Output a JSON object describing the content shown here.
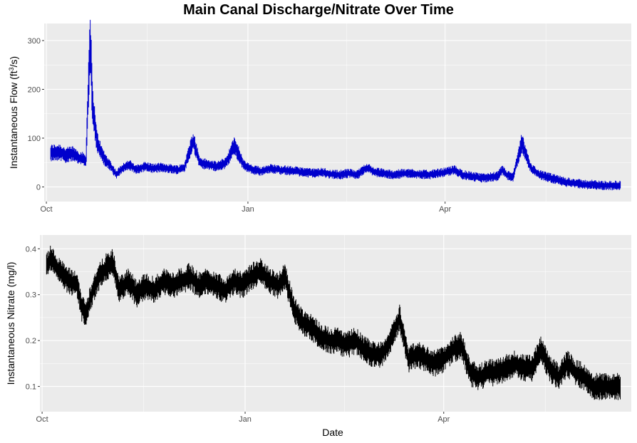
{
  "title": "Main Canal Discharge/Nitrate Over Time",
  "colors": {
    "panel_bg": "#ebebeb",
    "grid": "#ffffff",
    "flow_line": "#0000cc",
    "nitrate_line": "#000000"
  },
  "chart_data": [
    {
      "type": "line",
      "ylabel": "Instantaneous Flow (ft³/s)",
      "ylabel_main": "Instantaneous Flow (ft",
      "ylabel_sup": "3",
      "ylabel_end": "/s)",
      "xlabel": "",
      "x_ticks": [
        "Oct",
        "Jan",
        "Apr"
      ],
      "x_range": [
        "2016-09-30",
        "2017-06-25"
      ],
      "y_ticks": [
        0,
        100,
        200,
        300
      ],
      "ylim": [
        -30,
        335
      ],
      "color": "#0000cc",
      "series": [
        {
          "x": [
            "2016-10-03",
            "2016-10-07",
            "2016-10-10",
            "2016-10-13",
            "2016-10-16",
            "2016-10-19",
            "2016-10-21",
            "2016-10-22",
            "2016-10-24",
            "2016-10-26",
            "2016-10-28",
            "2016-10-30",
            "2016-11-02",
            "2016-11-05",
            "2016-11-08",
            "2016-11-11",
            "2016-11-15",
            "2016-11-19",
            "2016-11-22",
            "2016-11-26",
            "2016-11-30",
            "2016-12-03",
            "2016-12-07",
            "2016-12-10",
            "2016-12-14",
            "2016-12-18",
            "2016-12-22",
            "2016-12-26",
            "2016-12-30",
            "2017-01-03",
            "2017-01-07",
            "2017-01-11",
            "2017-01-15",
            "2017-01-19",
            "2017-01-23",
            "2017-01-27",
            "2017-01-31",
            "2017-02-04",
            "2017-02-08",
            "2017-02-12",
            "2017-02-16",
            "2017-02-20",
            "2017-02-24",
            "2017-02-28",
            "2017-03-04",
            "2017-03-08",
            "2017-03-12",
            "2017-03-16",
            "2017-03-20",
            "2017-03-24",
            "2017-03-28",
            "2017-04-01",
            "2017-04-05",
            "2017-04-09",
            "2017-04-13",
            "2017-04-17",
            "2017-04-21",
            "2017-04-25",
            "2017-04-27",
            "2017-04-29",
            "2017-05-02",
            "2017-05-06",
            "2017-05-10",
            "2017-05-14",
            "2017-05-18",
            "2017-05-22",
            "2017-05-26",
            "2017-05-30",
            "2017-06-03",
            "2017-06-07",
            "2017-06-11",
            "2017-06-15",
            "2017-06-20"
          ],
          "y": [
            70,
            72,
            65,
            68,
            60,
            55,
            310,
            175,
            95,
            70,
            55,
            45,
            25,
            40,
            45,
            35,
            42,
            38,
            40,
            38,
            35,
            40,
            95,
            50,
            45,
            42,
            50,
            85,
            45,
            35,
            32,
            38,
            35,
            34,
            32,
            30,
            28,
            30,
            26,
            25,
            28,
            25,
            40,
            30,
            28,
            25,
            27,
            28,
            26,
            25,
            27,
            30,
            35,
            25,
            22,
            18,
            20,
            22,
            35,
            25,
            20,
            90,
            40,
            25,
            20,
            15,
            10,
            8,
            5,
            5,
            3,
            3,
            3
          ]
        }
      ]
    },
    {
      "type": "line",
      "ylabel": "Instantaneous Nitrate (mg/l)",
      "xlabel": "Date",
      "x_ticks": [
        "Oct",
        "Jan",
        "Apr"
      ],
      "x_range": [
        "2016-09-30",
        "2017-06-25"
      ],
      "y_ticks": [
        "0.1",
        "0.2",
        "0.3",
        "0.4"
      ],
      "ylim": [
        0.045,
        0.43
      ],
      "color": "#000000",
      "series": [
        {
          "x": [
            "2016-10-03",
            "2016-10-05",
            "2016-10-09",
            "2016-10-13",
            "2016-10-17",
            "2016-10-19",
            "2016-10-21",
            "2016-10-24",
            "2016-10-27",
            "2016-10-30",
            "2016-11-02",
            "2016-11-05",
            "2016-11-09",
            "2016-11-13",
            "2016-11-17",
            "2016-11-21",
            "2016-11-25",
            "2016-11-29",
            "2016-12-03",
            "2016-12-07",
            "2016-12-11",
            "2016-12-15",
            "2016-12-19",
            "2016-12-23",
            "2016-12-27",
            "2016-12-31",
            "2017-01-04",
            "2017-01-08",
            "2017-01-12",
            "2017-01-16",
            "2017-01-19",
            "2017-01-23",
            "2017-01-27",
            "2017-01-31",
            "2017-02-04",
            "2017-02-08",
            "2017-02-12",
            "2017-02-16",
            "2017-02-20",
            "2017-02-24",
            "2017-02-28",
            "2017-03-04",
            "2017-03-08",
            "2017-03-12",
            "2017-03-16",
            "2017-03-20",
            "2017-03-24",
            "2017-03-28",
            "2017-04-01",
            "2017-04-05",
            "2017-04-09",
            "2017-04-13",
            "2017-04-17",
            "2017-04-21",
            "2017-04-25",
            "2017-04-29",
            "2017-05-03",
            "2017-05-07",
            "2017-05-11",
            "2017-05-15",
            "2017-05-19",
            "2017-05-23",
            "2017-05-27",
            "2017-05-31",
            "2017-06-04",
            "2017-06-08",
            "2017-06-12",
            "2017-06-16",
            "2017-06-20"
          ],
          "y": [
            0.36,
            0.38,
            0.35,
            0.33,
            0.32,
            0.27,
            0.26,
            0.31,
            0.34,
            0.36,
            0.37,
            0.31,
            0.33,
            0.3,
            0.32,
            0.31,
            0.33,
            0.32,
            0.33,
            0.34,
            0.32,
            0.33,
            0.32,
            0.31,
            0.33,
            0.32,
            0.34,
            0.35,
            0.33,
            0.32,
            0.34,
            0.27,
            0.24,
            0.23,
            0.21,
            0.2,
            0.2,
            0.19,
            0.2,
            0.18,
            0.17,
            0.17,
            0.2,
            0.25,
            0.16,
            0.17,
            0.16,
            0.15,
            0.16,
            0.18,
            0.19,
            0.13,
            0.12,
            0.13,
            0.13,
            0.14,
            0.15,
            0.14,
            0.14,
            0.18,
            0.14,
            0.12,
            0.15,
            0.13,
            0.12,
            0.1,
            0.1,
            0.1,
            0.1
          ]
        }
      ]
    }
  ]
}
